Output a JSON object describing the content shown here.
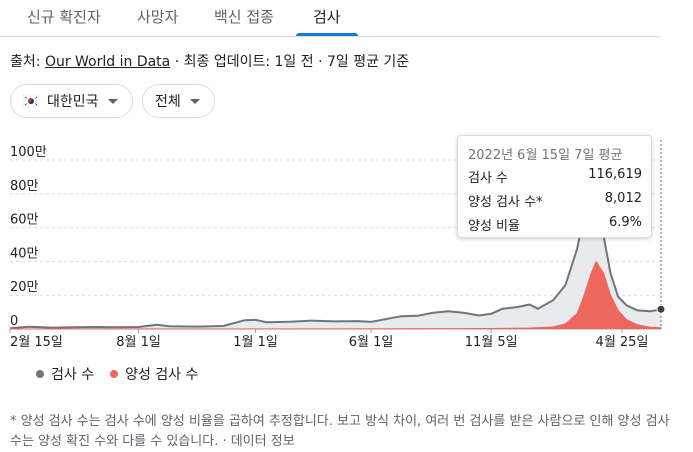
{
  "tabs": [
    {
      "label": "신규 확진자",
      "active": false
    },
    {
      "label": "사망자",
      "active": false
    },
    {
      "label": "백신 접종",
      "active": false
    },
    {
      "label": "검사",
      "active": true
    }
  ],
  "source": {
    "prefix": "출처: ",
    "link_text": "Our World in Data",
    "separator1": " · ",
    "update": "최종 업데이트: 1일 전",
    "separator2": " · ",
    "basis": "7일 평균 기준"
  },
  "filters": {
    "country": "대한민국",
    "range": "전체"
  },
  "tooltip": {
    "title": "2022년 6월 15일 7일 평균",
    "rows": [
      {
        "label": "검사 수",
        "value": "116,619"
      },
      {
        "label": "양성 검사 수*",
        "value": "8,012"
      },
      {
        "label": "양성 비율",
        "value": "6.9%"
      }
    ]
  },
  "legend": {
    "tests": "검사 수",
    "positive": "양성 검사 수"
  },
  "footnote": "* 양성 검사 수는 검사 수에 양성 비율을 곱하여 추정합니다. 보고 방식 차이, 여러 번 검사를 받은 사람으로 인해 양성 검사 수는 양성 확진 수와 다를 수 있습니다. · 데이터 정보",
  "colors": {
    "tests_line": "#70757a",
    "tests_fill": "#e8eaed",
    "positive": "#ee675c",
    "accent": "#1a73e8"
  },
  "chart_data": {
    "type": "area",
    "y_ticks": [
      "0",
      "20만",
      "40만",
      "60만",
      "80만",
      "100만"
    ],
    "ylim": [
      0,
      1000000
    ],
    "x_ticks": [
      "2월 15일",
      "8월 1일",
      "1월 1일",
      "6월 1일",
      "11월 5일",
      "4월 25일"
    ],
    "x_dates": [
      "2020-02-15",
      "2020-08-01",
      "2021-01-01",
      "2021-06-01",
      "2021-11-05",
      "2022-04-25"
    ],
    "x_range": [
      "2020-02-15",
      "2022-06-15"
    ],
    "series": [
      {
        "name": "검사 수",
        "points": [
          [
            "2020-02-15",
            5000
          ],
          [
            "2020-03-10",
            13000
          ],
          [
            "2020-04-10",
            8000
          ],
          [
            "2020-06-01",
            12000
          ],
          [
            "2020-07-01",
            10000
          ],
          [
            "2020-08-01",
            12000
          ],
          [
            "2020-08-25",
            25000
          ],
          [
            "2020-09-10",
            16000
          ],
          [
            "2020-10-15",
            14000
          ],
          [
            "2020-11-20",
            18000
          ],
          [
            "2020-12-18",
            52000
          ],
          [
            "2021-01-01",
            54000
          ],
          [
            "2021-01-15",
            40000
          ],
          [
            "2021-02-15",
            43000
          ],
          [
            "2021-03-15",
            50000
          ],
          [
            "2021-04-15",
            45000
          ],
          [
            "2021-05-15",
            47000
          ],
          [
            "2021-06-01",
            42000
          ],
          [
            "2021-07-10",
            75000
          ],
          [
            "2021-08-01",
            78000
          ],
          [
            "2021-08-20",
            95000
          ],
          [
            "2021-09-10",
            105000
          ],
          [
            "2021-10-01",
            95000
          ],
          [
            "2021-10-20",
            80000
          ],
          [
            "2021-11-05",
            90000
          ],
          [
            "2021-11-20",
            120000
          ],
          [
            "2021-12-10",
            130000
          ],
          [
            "2021-12-25",
            145000
          ],
          [
            "2022-01-05",
            120000
          ],
          [
            "2022-01-25",
            170000
          ],
          [
            "2022-02-10",
            260000
          ],
          [
            "2022-02-25",
            470000
          ],
          [
            "2022-03-05",
            640000
          ],
          [
            "2022-03-15",
            780000
          ],
          [
            "2022-03-22",
            710000
          ],
          [
            "2022-04-01",
            550000
          ],
          [
            "2022-04-10",
            330000
          ],
          [
            "2022-04-20",
            190000
          ],
          [
            "2022-05-01",
            140000
          ],
          [
            "2022-05-15",
            110000
          ],
          [
            "2022-06-01",
            105000
          ],
          [
            "2022-06-15",
            116619
          ]
        ]
      },
      {
        "name": "양성 검사 수",
        "points": [
          [
            "2020-02-15",
            100
          ],
          [
            "2021-06-01",
            1000
          ],
          [
            "2021-11-05",
            3000
          ],
          [
            "2021-12-25",
            6000
          ],
          [
            "2022-01-25",
            12000
          ],
          [
            "2022-02-10",
            30000
          ],
          [
            "2022-02-25",
            90000
          ],
          [
            "2022-03-05",
            180000
          ],
          [
            "2022-03-15",
            320000
          ],
          [
            "2022-03-22",
            400000
          ],
          [
            "2022-04-01",
            330000
          ],
          [
            "2022-04-10",
            200000
          ],
          [
            "2022-04-20",
            110000
          ],
          [
            "2022-05-01",
            55000
          ],
          [
            "2022-05-15",
            25000
          ],
          [
            "2022-06-01",
            10000
          ],
          [
            "2022-06-15",
            8012
          ]
        ]
      }
    ],
    "grid": true,
    "highlight_date": "2022-06-15"
  }
}
